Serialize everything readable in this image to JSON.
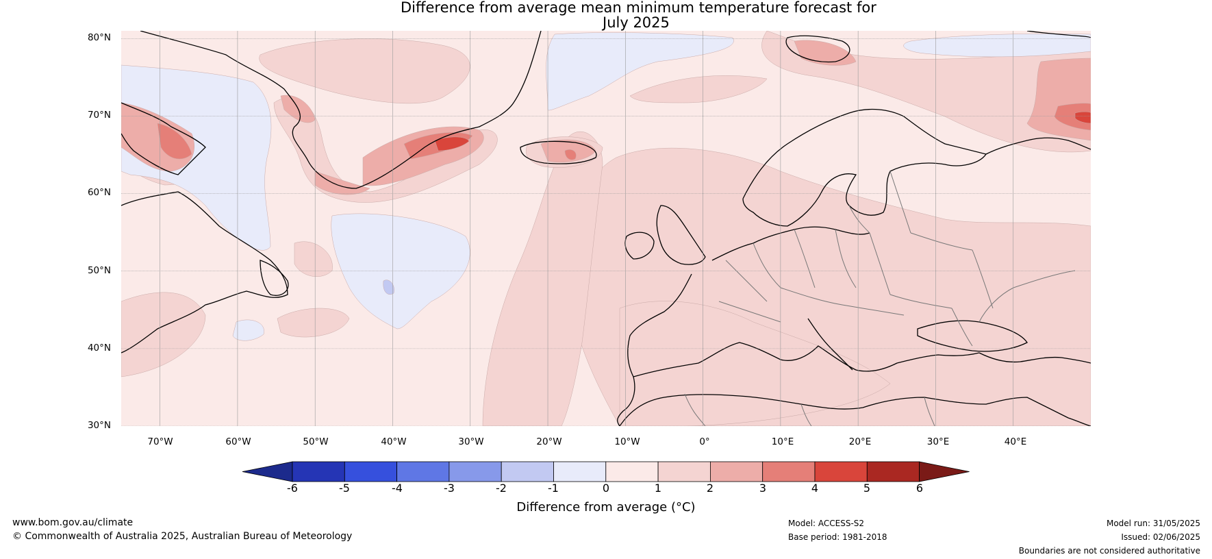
{
  "title": {
    "line1": "Difference from average mean minimum temperature forecast for",
    "line2": "July 2025"
  },
  "map": {
    "latitude_labels": [
      "80°N",
      "70°N",
      "60°N",
      "50°N",
      "40°N",
      "30°N"
    ],
    "longitude_labels": [
      "70°W",
      "60°W",
      "50°W",
      "40°W",
      "30°W",
      "20°W",
      "10°W",
      "0°",
      "10°E",
      "20°E",
      "30°E",
      "40°E"
    ],
    "lon_range": [
      -75,
      50
    ],
    "lat_range": [
      30,
      81
    ],
    "colors": {
      "ocean_base": "#fbeae8",
      "cool_1": "#e8ebfa",
      "cool_2": "#c2c9f2",
      "warm_2": "#f4d4d2",
      "warm_3": "#edada9",
      "warm_4": "#e57f78",
      "warm_5": "#d9453b"
    }
  },
  "colorbar": {
    "ticks": [
      "-6",
      "-5",
      "-4",
      "-3",
      "-2",
      "-1",
      "0",
      "1",
      "2",
      "3",
      "4",
      "5",
      "6"
    ],
    "colors": [
      "#1c2a8c",
      "#2535b5",
      "#3650dd",
      "#5f77e5",
      "#8799ea",
      "#c2c9f2",
      "#e8ebfa",
      "#fbeae8",
      "#f4d4d2",
      "#edada9",
      "#e57f78",
      "#d9453b",
      "#aa2822",
      "#7a1a17"
    ],
    "label": "Difference from average (°C)"
  },
  "footer": {
    "website": "www.bom.gov.au/climate",
    "copyright": "© Commonwealth of Australia 2025, Australian Bureau of Meteorology",
    "model": "Model: ACCESS-S2",
    "base_period": "Base period: 1981-2018",
    "model_run": "Model run: 31/05/2025",
    "issued": "Issued: 02/06/2025",
    "disclaimer": "Boundaries are not considered authoritative"
  }
}
